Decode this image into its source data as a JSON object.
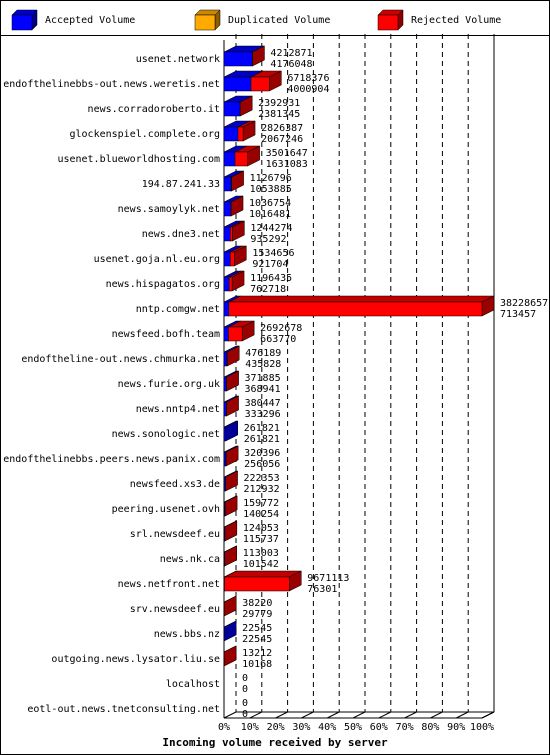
{
  "chart_data": {
    "type": "bar3d",
    "legend": [
      {
        "name": "Accepted Volume",
        "color": "#0000ff"
      },
      {
        "name": "Duplicated Volume",
        "color": "#ffaa00"
      },
      {
        "name": "Rejected Volume",
        "color": "#ff0000"
      }
    ],
    "x_label": "Incoming volume received by server",
    "categories": [
      "usenet.network",
      "endofthelinebbs-out.news.weretis.net",
      "news.corradoroberto.it",
      "glockenspiel.complete.org",
      "usenet.blueworldhosting.com",
      "194.87.241.33",
      "news.samoylyk.net",
      "news.dne3.net",
      "usenet.goja.nl.eu.org",
      "news.hispagatos.org",
      "nntp.comgw.net",
      "newsfeed.bofh.team",
      "endoftheline-out.news.chmurka.net",
      "news.furie.org.uk",
      "news.nntp4.net",
      "news.sonologic.net",
      "endofthelinebbs.peers.news.panix.com",
      "newsfeed.xs3.de",
      "peering.usenet.ovh",
      "srl.newsdeef.eu",
      "news.nk.ca",
      "news.netfront.net",
      "srv.newsdeef.eu",
      "news.bbs.nz",
      "outgoing.news.lysator.liu.se",
      "localhost",
      "eotl-out.news.tnetconsulting.net"
    ],
    "totals": [
      4212871,
      6718376,
      2392931,
      2826387,
      3501647,
      1126796,
      1036754,
      1244274,
      1534656,
      1196435,
      38228657,
      2692678,
      476189,
      371885,
      380447,
      261821,
      320396,
      222353,
      159772,
      124053,
      113003,
      9671113,
      38220,
      22545,
      13212,
      0,
      0
    ],
    "accepted": [
      4176048,
      4000904,
      2381345,
      2067246,
      1631083,
      1053885,
      1016481,
      935292,
      921704,
      762718,
      713457,
      663770,
      435828,
      368941,
      333296,
      261821,
      256056,
      212932,
      140254,
      115737,
      101542,
      76301,
      29779,
      22545,
      10168,
      0,
      0
    ],
    "xlim": [
      0,
      38228657
    ],
    "xticks": [
      {
        "value": 0,
        "label": "0%"
      },
      {
        "value": 3822865.7,
        "label": "10%"
      },
      {
        "value": 7645731.4,
        "label": "20%"
      },
      {
        "value": 11468597.1,
        "label": "30%"
      },
      {
        "value": 15291462.8,
        "label": "40%"
      },
      {
        "value": 19114328.5,
        "label": "50%"
      },
      {
        "value": 22937194.2,
        "label": "60%"
      },
      {
        "value": 26760059.9,
        "label": "70%"
      },
      {
        "value": 30582925.6,
        "label": "80%"
      },
      {
        "value": 34405791.3,
        "label": "90%"
      },
      {
        "value": 38228657,
        "label": "100%"
      }
    ],
    "grid": true
  }
}
